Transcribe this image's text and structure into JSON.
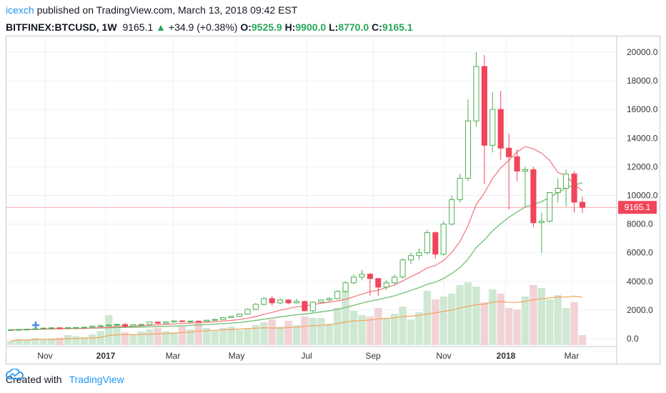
{
  "header": {
    "author": "icexch",
    "published_text": "published on TradingView.com, March 13, 2018 09:42 EST",
    "symbol": "BITFINEX:BTCUSD, 1W",
    "last": "9165.1",
    "change": "+34.9 (+0.38%)",
    "o_label": "O:",
    "o_value": "9525.9",
    "h_label": "H:",
    "h_value": "9900.0",
    "l_label": "L:",
    "l_value": "8770.0",
    "c_label": "C:",
    "c_value": "9165.1"
  },
  "footer": {
    "created_with": "Created with",
    "brand": "TradingView",
    "brand_icon": "tradingview-cloud-icon"
  },
  "colors": {
    "up": "#26a65b",
    "down": "#f0455a",
    "up_fill": "#ffffff",
    "up_stroke": "#4caf50",
    "ma_short": "#f4737c",
    "ma_long": "#7cc27e",
    "vol_ma": "#f5a25d",
    "vol_up": "#cfe8d2",
    "vol_down": "#f1d3d6",
    "price_line": "#f0455a"
  },
  "chart_data": {
    "type": "candlestick",
    "interval": "1W",
    "y_axis": {
      "min": 0,
      "max": 20000,
      "ticks": [
        "20000.0",
        "18000.0",
        "16000.0",
        "14000.0",
        "12000.0",
        "10000.0",
        "8000.0",
        "6000.0",
        "4000.0",
        "2000.0",
        "0.0"
      ]
    },
    "x_ticks": [
      {
        "label": "Nov",
        "bold": false
      },
      {
        "label": "2017",
        "bold": true
      },
      {
        "label": "Mar",
        "bold": false
      },
      {
        "label": "May",
        "bold": false
      },
      {
        "label": "Jul",
        "bold": false
      },
      {
        "label": "Sep",
        "bold": false
      },
      {
        "label": "Nov",
        "bold": false
      },
      {
        "label": "2018",
        "bold": true
      },
      {
        "label": "Mar",
        "bold": false
      }
    ],
    "last_price_label": "9165.1",
    "last_price": 9165.1,
    "candles": [
      [
        600,
        640,
        590,
        620
      ],
      [
        620,
        650,
        600,
        640
      ],
      [
        640,
        680,
        630,
        660
      ],
      [
        660,
        700,
        640,
        690
      ],
      [
        690,
        760,
        680,
        740
      ],
      [
        740,
        780,
        700,
        760
      ],
      [
        760,
        800,
        720,
        740
      ],
      [
        740,
        780,
        730,
        770
      ],
      [
        770,
        800,
        740,
        780
      ],
      [
        780,
        820,
        760,
        800
      ],
      [
        800,
        900,
        780,
        880
      ],
      [
        880,
        960,
        860,
        900
      ],
      [
        900,
        1000,
        880,
        960
      ],
      [
        960,
        1020,
        900,
        990
      ],
      [
        990,
        1100,
        780,
        880
      ],
      [
        880,
        1000,
        850,
        970
      ],
      [
        970,
        1000,
        940,
        990
      ],
      [
        990,
        1200,
        960,
        1160
      ],
      [
        1160,
        1180,
        1000,
        1080
      ],
      [
        1080,
        1200,
        1060,
        1170
      ],
      [
        1170,
        1280,
        1150,
        1240
      ],
      [
        1240,
        1300,
        1180,
        1200
      ],
      [
        1200,
        1260,
        1120,
        1230
      ],
      [
        1230,
        1270,
        1180,
        1210
      ],
      [
        1210,
        1300,
        1200,
        1290
      ],
      [
        1290,
        1360,
        1260,
        1340
      ],
      [
        1340,
        1500,
        1300,
        1470
      ],
      [
        1470,
        1600,
        1440,
        1560
      ],
      [
        1560,
        1750,
        1520,
        1720
      ],
      [
        1720,
        2100,
        1680,
        2050
      ],
      [
        2050,
        2500,
        2000,
        2400
      ],
      [
        2400,
        2900,
        2300,
        2800
      ],
      [
        2800,
        3000,
        2300,
        2500
      ],
      [
        2500,
        2800,
        2400,
        2700
      ],
      [
        2700,
        2750,
        2400,
        2500
      ],
      [
        2500,
        2800,
        2450,
        2600
      ],
      [
        2600,
        2650,
        2000,
        1950
      ],
      [
        1950,
        2600,
        1850,
        2550
      ],
      [
        2550,
        2750,
        2500,
        2700
      ],
      [
        2700,
        2900,
        2600,
        2800
      ],
      [
        2800,
        3400,
        2750,
        3300
      ],
      [
        3300,
        4000,
        3200,
        3900
      ],
      [
        3900,
        4500,
        3800,
        4300
      ],
      [
        4300,
        4800,
        4100,
        4500
      ],
      [
        4500,
        4600,
        3000,
        4200
      ],
      [
        4200,
        4000,
        3000,
        3600
      ],
      [
        3600,
        4100,
        3400,
        3900
      ],
      [
        3900,
        4500,
        3800,
        4300
      ],
      [
        4300,
        5600,
        4200,
        5500
      ],
      [
        5500,
        6000,
        5200,
        5800
      ],
      [
        5800,
        6300,
        5500,
        6000
      ],
      [
        6000,
        7600,
        5900,
        7400
      ],
      [
        7400,
        7500,
        5600,
        5900
      ],
      [
        5900,
        8200,
        5800,
        8000
      ],
      [
        8000,
        10000,
        7900,
        9700
      ],
      [
        9700,
        11500,
        9500,
        11200
      ],
      [
        11200,
        16700,
        11000,
        15200
      ],
      [
        15200,
        20000,
        14800,
        19000
      ],
      [
        19000,
        19800,
        10800,
        13500
      ],
      [
        13500,
        17200,
        13000,
        16000
      ],
      [
        16000,
        17300,
        12500,
        13300
      ],
      [
        13300,
        14300,
        9000,
        12700
      ],
      [
        12700,
        13200,
        11000,
        11700
      ],
      [
        11700,
        12000,
        9200,
        11800
      ],
      [
        11800,
        12000,
        7800,
        8100
      ],
      [
        8100,
        8800,
        6000,
        8200
      ],
      [
        8200,
        10000,
        8100,
        10200
      ],
      [
        10200,
        11200,
        9500,
        10500
      ],
      [
        10500,
        11800,
        9200,
        11500
      ],
      [
        11500,
        11700,
        8800,
        9530
      ],
      [
        9525.9,
        9900,
        8770,
        9165.1
      ]
    ],
    "volumes": [
      300,
      420,
      350,
      500,
      380,
      460,
      520,
      700,
      620,
      560,
      760,
      980,
      2100,
      1500,
      900,
      780,
      960,
      1100,
      1200,
      980,
      900,
      1300,
      1100,
      1600,
      1200,
      1000,
      1200,
      1300,
      1050,
      1150,
      1400,
      1600,
      1800,
      1300,
      1700,
      1400,
      2000,
      1900,
      1900,
      1500,
      2600,
      3800,
      2400,
      2100,
      2000,
      2600,
      1900,
      2200,
      2700,
      1800,
      2300,
      3800,
      3200,
      3400,
      3600,
      4200,
      4400,
      4100,
      3000,
      3900,
      3600,
      2600,
      2500,
      3400,
      4200,
      4000,
      3200,
      3500,
      2600,
      3000,
      700
    ],
    "series": [
      {
        "name": "MA short",
        "values": []
      },
      {
        "name": "MA long",
        "values": []
      },
      {
        "name": "Volume MA",
        "values": []
      }
    ]
  }
}
